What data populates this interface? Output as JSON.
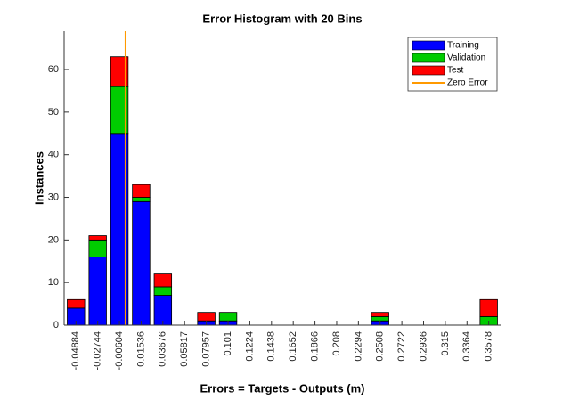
{
  "chart_data": {
    "type": "stacked_histogram",
    "title": "Error Histogram with 20 Bins",
    "x_label": "Errors = Targets - Outputs  (m)",
    "y_label": "Instances",
    "x": [
      -0.04884,
      -0.02744,
      -0.00604,
      0.01536,
      0.03676,
      0.05817,
      0.07957,
      0.101,
      0.1224,
      0.1438,
      0.1652,
      0.1866,
      0.208,
      0.2294,
      0.2508,
      0.2722,
      0.2936,
      0.315,
      0.3364,
      0.3578
    ],
    "series": [
      {
        "name": "Training",
        "color": "#0000ff",
        "values": [
          4,
          16,
          45,
          29,
          7,
          0,
          1,
          1,
          0,
          0,
          0,
          0,
          0,
          0,
          1,
          0,
          0,
          0,
          0,
          0
        ]
      },
      {
        "name": "Validation",
        "color": "#00cc00",
        "values": [
          0,
          4,
          11,
          1,
          2,
          0,
          0,
          2,
          0,
          0,
          0,
          0,
          0,
          0,
          1,
          0,
          0,
          0,
          0,
          2
        ]
      },
      {
        "name": "Test",
        "color": "#ff0000",
        "values": [
          2,
          1,
          7,
          3,
          3,
          0,
          2,
          0,
          0,
          0,
          0,
          0,
          0,
          0,
          1,
          0,
          0,
          0,
          0,
          4
        ]
      }
    ],
    "reference_line": {
      "name": "Zero Error",
      "color": "#ff9900",
      "x": 0
    },
    "xlim": [
      -0.0605,
      0.3695
    ],
    "xticks": [
      -0.04884,
      -0.02744,
      -0.00604,
      0.01536,
      0.03676,
      0.05817,
      0.07957,
      0.101,
      0.1224,
      0.1438,
      0.1652,
      0.1866,
      0.208,
      0.2294,
      0.2508,
      0.2722,
      0.2936,
      0.315,
      0.3364,
      0.3578
    ],
    "ylim": [
      0,
      69
    ],
    "yticks": [
      0,
      10,
      20,
      30,
      40,
      50,
      60
    ],
    "legend": "upper right"
  }
}
